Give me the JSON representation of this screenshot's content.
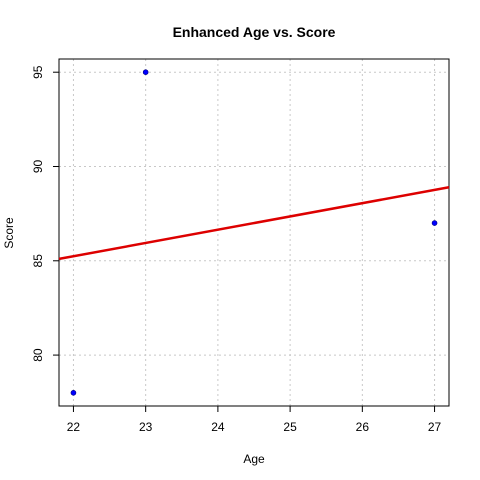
{
  "chart_data": {
    "type": "scatter",
    "title": "Enhanced Age vs. Score",
    "xlabel": "Age",
    "ylabel": "Score",
    "xlim": [
      21.8,
      27.2
    ],
    "ylim": [
      77.3,
      95.7
    ],
    "xticks": [
      "22",
      "23",
      "24",
      "25",
      "26",
      "27"
    ],
    "yticks": [
      "80",
      "85",
      "90",
      "95"
    ],
    "grid": true,
    "points": [
      {
        "x": 22,
        "y": 78
      },
      {
        "x": 23,
        "y": 95
      },
      {
        "x": 27,
        "y": 87
      }
    ],
    "trend_line": {
      "x": [
        21.8,
        27.2
      ],
      "y": [
        85.1,
        88.9
      ]
    },
    "colors": {
      "points": "#0000ff",
      "trend_line": "#dd0000",
      "grid": "#c8c8c8"
    }
  }
}
